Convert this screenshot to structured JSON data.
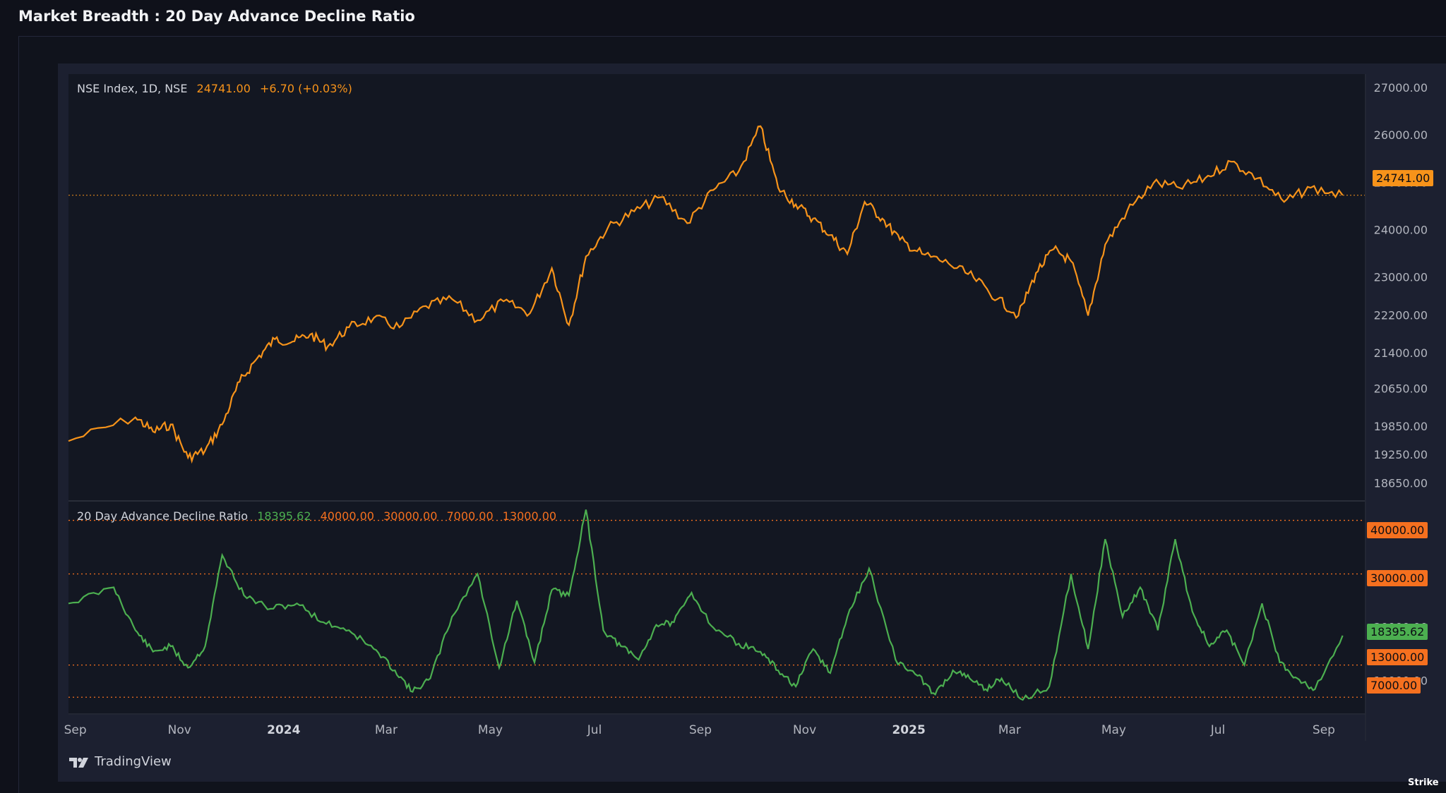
{
  "page": {
    "title": "Market Breadth : 20 Day Advance Decline Ratio"
  },
  "branding": {
    "logo_text": "TradingView",
    "watermark": "Strike"
  },
  "colors": {
    "index_line": "#f7931a",
    "breadth_line": "#4caf50",
    "level_line": "#f5701f",
    "pane_bg": "#131722",
    "axis_text": "#b2b5be"
  },
  "chart_data": [
    {
      "type": "line",
      "pane": "price",
      "legend": {
        "symbol": "NSE Index, 1D, NSE",
        "last": "24741.00",
        "change": "+6.70 (+0.03%)"
      },
      "series": [
        {
          "name": "NSE Index",
          "x": [
            "2023-09",
            "2023-10",
            "2023-10",
            "2023-10",
            "2023-11",
            "2023-11",
            "2023-11",
            "2023-12",
            "2023-12",
            "2023-12",
            "2024-01",
            "2024-01",
            "2024-01",
            "2024-02",
            "2024-02",
            "2024-03",
            "2024-03",
            "2024-04",
            "2024-04",
            "2024-05",
            "2024-05",
            "2024-06",
            "2024-06",
            "2024-06",
            "2024-07",
            "2024-07",
            "2024-08",
            "2024-08",
            "2024-09",
            "2024-09",
            "2024-10",
            "2024-10",
            "2024-10",
            "2024-11",
            "2024-11",
            "2024-11",
            "2024-12",
            "2024-12",
            "2024-12",
            "2025-01",
            "2025-01",
            "2025-02",
            "2025-02",
            "2025-03",
            "2025-03",
            "2025-03",
            "2025-04",
            "2025-04",
            "2025-04",
            "2025-05",
            "2025-05",
            "2025-06",
            "2025-06",
            "2025-07",
            "2025-07",
            "2025-08",
            "2025-08",
            "2025-09"
          ],
          "values": [
            19550,
            20050,
            19750,
            19900,
            19200,
            19350,
            19900,
            20800,
            21300,
            21700,
            21650,
            21800,
            21550,
            21950,
            22150,
            21950,
            22400,
            22550,
            22100,
            22500,
            22250,
            23200,
            22000,
            23450,
            24050,
            24400,
            24700,
            24150,
            24850,
            25250,
            26200,
            24900,
            24550,
            24250,
            23900,
            23500,
            24600,
            24250,
            23800,
            23500,
            23300,
            23000,
            22550,
            22200,
            23100,
            23600,
            23350,
            22200,
            23700,
            24400,
            25000,
            24900,
            25100,
            25450,
            25100,
            24600,
            24900,
            24741
          ]
        }
      ],
      "y_ticks": [
        27000,
        26000,
        25000,
        24000,
        23000,
        22200,
        21400,
        20650,
        19850,
        19250,
        18650
      ],
      "ylim": [
        18300,
        27300
      ],
      "last_value": 24741
    },
    {
      "type": "line",
      "pane": "indicator",
      "legend": {
        "name": "20 Day Advance Decline Ratio",
        "value": "18395.62",
        "levels_text": [
          "40000.00",
          "30000.00",
          "7000.00",
          "13000.00"
        ]
      },
      "series": [
        {
          "name": "20 Day Advance Decline Ratio",
          "x": [
            "2023-09",
            "2023-09",
            "2023-10",
            "2023-10",
            "2023-10",
            "2023-11",
            "2023-11",
            "2023-11",
            "2023-12",
            "2023-12",
            "2024-01",
            "2024-01",
            "2024-02",
            "2024-02",
            "2024-03",
            "2024-03",
            "2024-03",
            "2024-04",
            "2024-04",
            "2024-05",
            "2024-05",
            "2024-05",
            "2024-06",
            "2024-06",
            "2024-06",
            "2024-07",
            "2024-07",
            "2024-07",
            "2024-08",
            "2024-08",
            "2024-08",
            "2024-09",
            "2024-09",
            "2024-10",
            "2024-10",
            "2024-10",
            "2024-11",
            "2024-11",
            "2024-11",
            "2024-12",
            "2024-12",
            "2025-01",
            "2025-01",
            "2025-01",
            "2025-02",
            "2025-02",
            "2025-02",
            "2025-03",
            "2025-03",
            "2025-04",
            "2025-04",
            "2025-04",
            "2025-05",
            "2025-05",
            "2025-05",
            "2025-06",
            "2025-06",
            "2025-06",
            "2025-07",
            "2025-07",
            "2025-07",
            "2025-08",
            "2025-08",
            "2025-08",
            "2025-09"
          ],
          "values": [
            24500,
            27500,
            19500,
            15500,
            16500,
            12500,
            16500,
            33500,
            26000,
            23500,
            24500,
            21000,
            19500,
            16000,
            12000,
            8000,
            10500,
            22000,
            30000,
            12500,
            25000,
            13500,
            27000,
            26000,
            42000,
            19500,
            16500,
            14000,
            20500,
            21000,
            26500,
            20000,
            17000,
            15500,
            12000,
            9000,
            16000,
            11500,
            22000,
            31000,
            14000,
            11000,
            7500,
            12000,
            10500,
            8500,
            10500,
            6500,
            9000,
            30000,
            16000,
            36500,
            22000,
            27500,
            19500,
            36500,
            23000,
            16500,
            19500,
            13000,
            24500,
            13500,
            10500,
            8500,
            18500
          ]
        }
      ],
      "levels": [
        40000,
        30000,
        13000,
        7000
      ],
      "y_ticks": [
        20000,
        10000
      ],
      "last_value": 18395.62,
      "last_label": "18395.62",
      "level_labels": [
        "40000.00",
        "30000.00",
        "13000.00",
        "7000.00"
      ]
    }
  ],
  "time_axis": [
    {
      "label": "Sep",
      "date": "2023-09-01",
      "bold": false
    },
    {
      "label": "Nov",
      "date": "2023-11-01",
      "bold": false
    },
    {
      "label": "2024",
      "date": "2024-01-01",
      "bold": true
    },
    {
      "label": "Mar",
      "date": "2024-03-01",
      "bold": false
    },
    {
      "label": "May",
      "date": "2024-05-01",
      "bold": false
    },
    {
      "label": "Jul",
      "date": "2024-07-01",
      "bold": false
    },
    {
      "label": "Sep",
      "date": "2024-09-01",
      "bold": false
    },
    {
      "label": "Nov",
      "date": "2024-11-01",
      "bold": false
    },
    {
      "label": "2025",
      "date": "2025-01-01",
      "bold": true
    },
    {
      "label": "Mar",
      "date": "2025-03-01",
      "bold": false
    },
    {
      "label": "May",
      "date": "2025-05-01",
      "bold": false
    },
    {
      "label": "Jul",
      "date": "2025-07-01",
      "bold": false
    },
    {
      "label": "Sep",
      "date": "2025-09-01",
      "bold": false
    }
  ]
}
